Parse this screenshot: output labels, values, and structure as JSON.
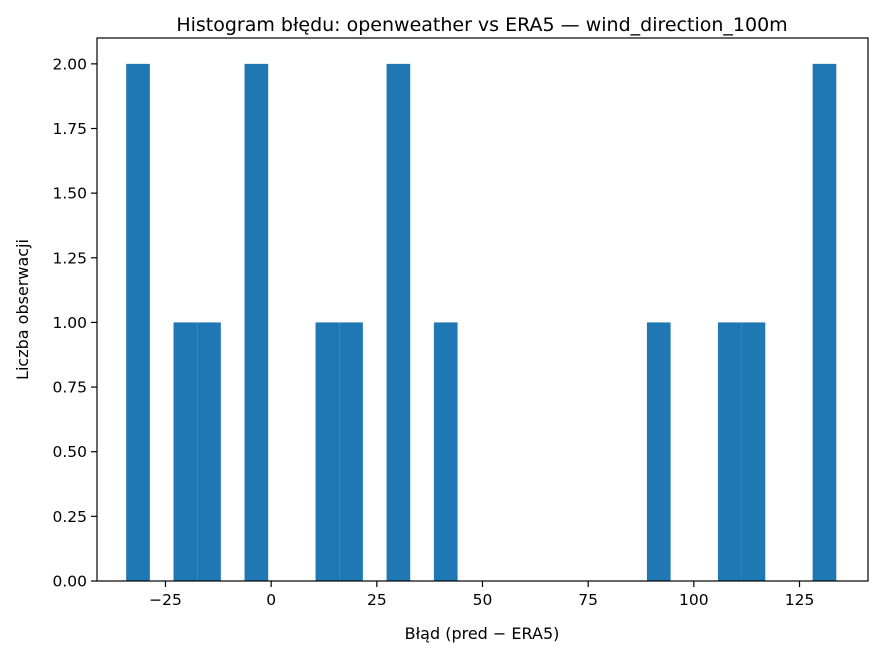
{
  "chart_data": {
    "type": "bar",
    "title": "Histogram błędu: openweather vs ERA5 — wind_direction_100m",
    "xlabel": "Błąd (pred − ERA5)",
    "ylabel": "Liczba obserwacji",
    "xlim": [
      -41.2,
      141.2
    ],
    "ylim": [
      0,
      2.1
    ],
    "x_ticks": [
      -25,
      0,
      25,
      50,
      75,
      100,
      125
    ],
    "x_tick_labels": [
      "−25",
      "0",
      "25",
      "50",
      "75",
      "100",
      "125"
    ],
    "y_ticks": [
      0,
      0.25,
      0.5,
      0.75,
      1.0,
      1.25,
      1.5,
      1.75,
      2.0
    ],
    "y_tick_labels": [
      "0.00",
      "0.25",
      "0.50",
      "0.75",
      "1.00",
      "1.25",
      "1.50",
      "1.75",
      "2.00"
    ],
    "bin_width": 5.6,
    "bin_start": -34.3,
    "counts": [
      2,
      0,
      1,
      1,
      0,
      2,
      0,
      0,
      1,
      1,
      0,
      2,
      0,
      1,
      0,
      0,
      0,
      0,
      0,
      0,
      0,
      0,
      1,
      0,
      0,
      1,
      1,
      0,
      0,
      2
    ],
    "bar_color": "#1f77b4",
    "grid": false,
    "legend": "none"
  }
}
